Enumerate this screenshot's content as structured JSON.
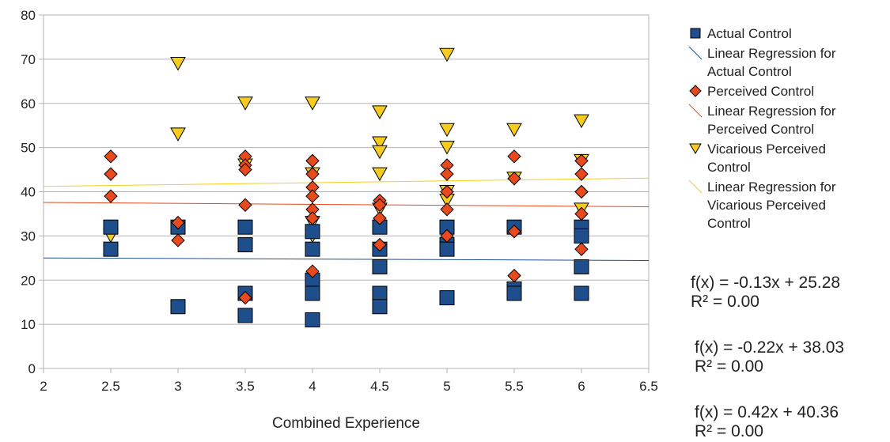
{
  "chart_data": {
    "type": "scatter",
    "xlabel": "Combined Experience",
    "ylabel": "",
    "xlim": [
      2,
      6.5
    ],
    "ylim": [
      0,
      80
    ],
    "xticks": [
      "2",
      "2.5",
      "3",
      "3.5",
      "4",
      "4.5",
      "5",
      "5.5",
      "6",
      "6.5"
    ],
    "yticks": [
      "0",
      "10",
      "20",
      "30",
      "40",
      "50",
      "60",
      "70",
      "80"
    ],
    "grid": "horizontal",
    "legend_position": "right",
    "series": [
      {
        "name": "Actual Control",
        "marker": "square",
        "color": "#1f4e8c",
        "points": [
          [
            2.5,
            32
          ],
          [
            2.5,
            27
          ],
          [
            3,
            32
          ],
          [
            3,
            14
          ],
          [
            3.5,
            32
          ],
          [
            3.5,
            28
          ],
          [
            3.5,
            17
          ],
          [
            3.5,
            12
          ],
          [
            4,
            31
          ],
          [
            4,
            27
          ],
          [
            4,
            20
          ],
          [
            4,
            17
          ],
          [
            4,
            11
          ],
          [
            4.5,
            32
          ],
          [
            4.5,
            27
          ],
          [
            4.5,
            23
          ],
          [
            4.5,
            17
          ],
          [
            4.5,
            14
          ],
          [
            5,
            32
          ],
          [
            5,
            28
          ],
          [
            5,
            27
          ],
          [
            5,
            16
          ],
          [
            5.5,
            32
          ],
          [
            5.5,
            18
          ],
          [
            5.5,
            17
          ],
          [
            6,
            32
          ],
          [
            6,
            30
          ],
          [
            6,
            23
          ],
          [
            6,
            17
          ]
        ]
      },
      {
        "name": "Perceived Control",
        "marker": "diamond",
        "color": "#e8491d",
        "points": [
          [
            2.5,
            48
          ],
          [
            2.5,
            44
          ],
          [
            2.5,
            39
          ],
          [
            3,
            33
          ],
          [
            3,
            29
          ],
          [
            3.5,
            48
          ],
          [
            3.5,
            46
          ],
          [
            3.5,
            45
          ],
          [
            3.5,
            37
          ],
          [
            3.5,
            16
          ],
          [
            4,
            47
          ],
          [
            4,
            44
          ],
          [
            4,
            41
          ],
          [
            4,
            39
          ],
          [
            4,
            36
          ],
          [
            4,
            34
          ],
          [
            4,
            22
          ],
          [
            4.5,
            38
          ],
          [
            4.5,
            37
          ],
          [
            4.5,
            34
          ],
          [
            4.5,
            28
          ],
          [
            5,
            46
          ],
          [
            5,
            44
          ],
          [
            5,
            40
          ],
          [
            5,
            36
          ],
          [
            5,
            30
          ],
          [
            5.5,
            48
          ],
          [
            5.5,
            43
          ],
          [
            5.5,
            31
          ],
          [
            5.5,
            21
          ],
          [
            6,
            47
          ],
          [
            6,
            44
          ],
          [
            6,
            40
          ],
          [
            6,
            35
          ],
          [
            6,
            27
          ]
        ]
      },
      {
        "name": "Vicarious Perceived Control",
        "marker": "triangle-down",
        "color": "#f7cc1c",
        "points": [
          [
            2.5,
            30
          ],
          [
            3,
            69
          ],
          [
            3,
            53
          ],
          [
            3,
            32
          ],
          [
            3.5,
            60
          ],
          [
            3.5,
            46
          ],
          [
            3.5,
            28
          ],
          [
            4,
            60
          ],
          [
            4,
            44
          ],
          [
            4,
            33
          ],
          [
            4,
            30
          ],
          [
            4.5,
            58
          ],
          [
            4.5,
            51
          ],
          [
            4.5,
            49
          ],
          [
            4.5,
            44
          ],
          [
            4.5,
            36
          ],
          [
            5,
            71
          ],
          [
            5,
            54
          ],
          [
            5,
            50
          ],
          [
            5,
            40
          ],
          [
            5,
            38
          ],
          [
            5.5,
            54
          ],
          [
            5.5,
            43
          ],
          [
            6,
            56
          ],
          [
            6,
            47
          ],
          [
            6,
            36
          ],
          [
            6,
            30
          ]
        ]
      }
    ],
    "regressions": [
      {
        "name": "Linear Regression for Actual Control",
        "slope": -0.13,
        "intercept": 25.28,
        "color": "#1f4e8c",
        "equation": "f(x) = -0.13x + 25.28",
        "r2": "R² = 0.00"
      },
      {
        "name": "Linear Regression for Perceived Control",
        "slope": -0.22,
        "intercept": 38.03,
        "color": "#e8491d",
        "equation": "f(x) = -0.22x + 38.03",
        "r2": "R² = 0.00"
      },
      {
        "name": "Linear Regression for Vicarious Perceived Control",
        "slope": 0.42,
        "intercept": 40.36,
        "color": "#f7cc1c",
        "equation": "f(x) = 0.42x + 40.36",
        "r2": "R² = 0.00"
      }
    ]
  },
  "legend": [
    {
      "label": "Actual Control",
      "symbol": "square",
      "color": "#1f4e8c"
    },
    {
      "label": "Linear Regression for\nActual Control",
      "symbol": "line",
      "color": "#1f4e8c"
    },
    {
      "label": "Perceived Control",
      "symbol": "diamond",
      "color": "#e8491d"
    },
    {
      "label": "Linear Regression for\nPerceived Control",
      "symbol": "line",
      "color": "#e8491d"
    },
    {
      "label": "Vicarious Perceived\nControl",
      "symbol": "triangle-down",
      "color": "#f7cc1c"
    },
    {
      "label": "Linear Regression for\nVicarious Perceived\nControl",
      "symbol": "line",
      "color": "#f7cc1c"
    }
  ]
}
